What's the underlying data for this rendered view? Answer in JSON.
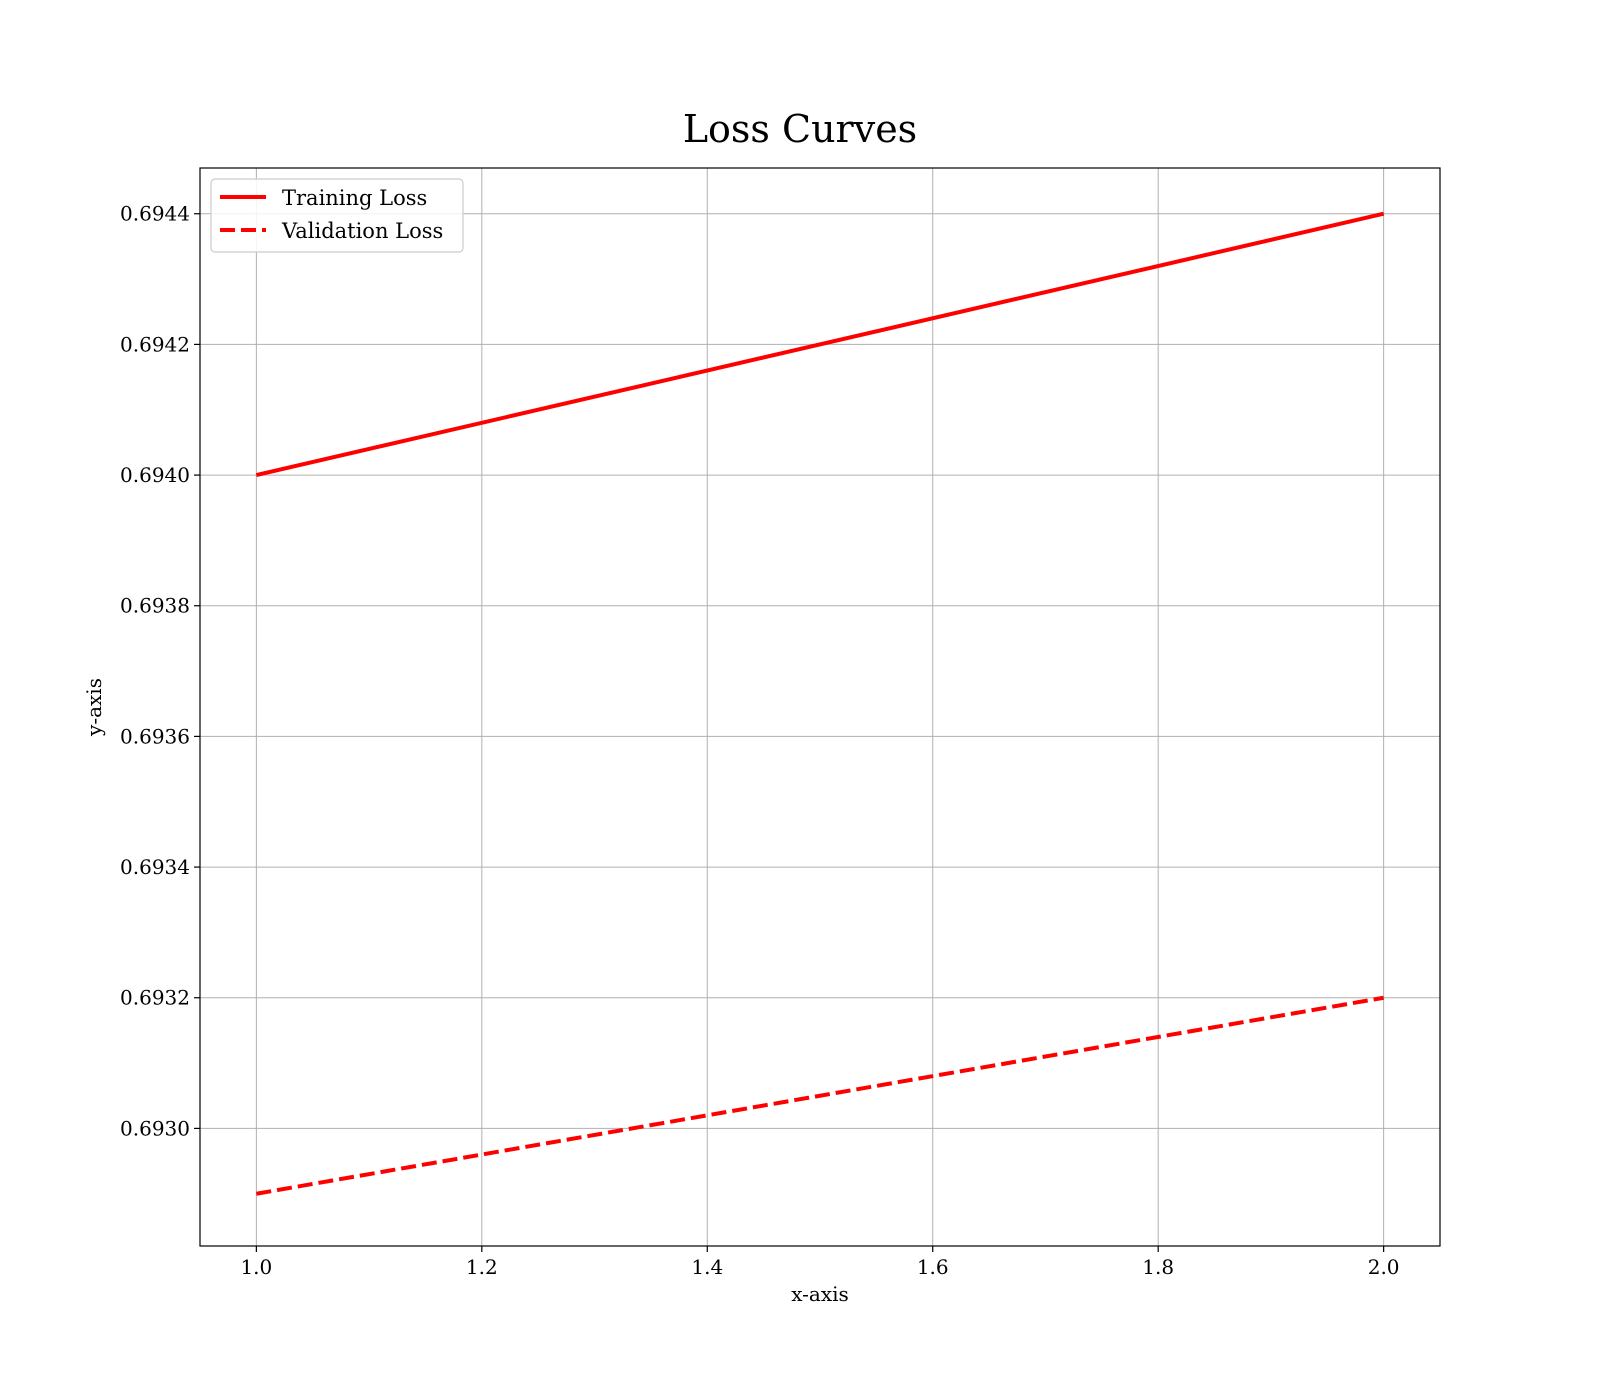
{
  "chart_data": {
    "type": "line",
    "title": "Loss Curves",
    "xlabel": "x-axis",
    "ylabel": "y-axis",
    "xlim": [
      0.95,
      2.05
    ],
    "ylim": [
      0.69282,
      0.69447
    ],
    "x_ticks": [
      1.0,
      1.2,
      1.4,
      1.6,
      1.8,
      2.0
    ],
    "x_tick_labels": [
      "1.0",
      "1.2",
      "1.4",
      "1.6",
      "1.8",
      "2.0"
    ],
    "y_ticks": [
      0.693,
      0.6932,
      0.6934,
      0.6936,
      0.6938,
      0.694,
      0.6942,
      0.6944
    ],
    "y_tick_labels": [
      "0.6930",
      "0.6932",
      "0.6934",
      "0.6936",
      "0.6938",
      "0.6940",
      "0.6942",
      "0.6944"
    ],
    "grid": true,
    "legend_position": "top-left",
    "series": [
      {
        "name": "Training Loss",
        "color": "#ff0000",
        "line_style": "solid",
        "x": [
          1.0,
          2.0
        ],
        "y": [
          0.694,
          0.6944
        ]
      },
      {
        "name": "Validation Loss",
        "color": "#ff0000",
        "line_style": "dashed",
        "x": [
          1.0,
          2.0
        ],
        "y": [
          0.6929,
          0.6932
        ]
      }
    ]
  }
}
